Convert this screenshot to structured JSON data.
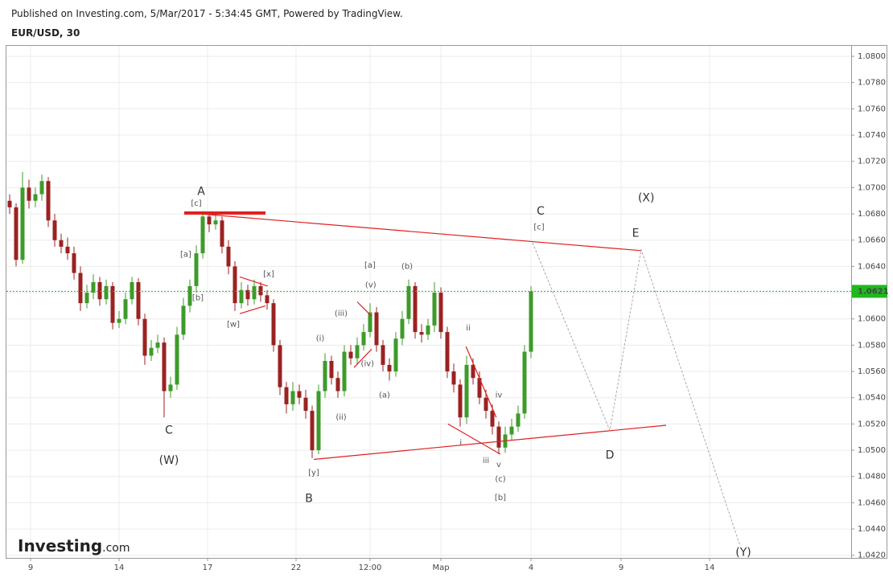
{
  "header": {
    "published": "Published on Investing.com, 5/Mar/2017 - 5:34:45 GMT, Powered by TradingView.",
    "symbol": "EUR/USD, 30"
  },
  "logo": {
    "brand": "Investing",
    "suffix": ".com"
  },
  "chart_data": {
    "type": "candlestick",
    "grid": true,
    "up_color": "#3e9b2a",
    "down_color": "#9b2222",
    "xlim": [
      -0.5,
      130.75
    ],
    "ylim": [
      1.0418,
      1.0808
    ],
    "xticks": [
      {
        "value": 3.25,
        "label": "9"
      },
      {
        "value": 17,
        "label": "14"
      },
      {
        "value": 30.75,
        "label": "17"
      },
      {
        "value": 44.5,
        "label": "22"
      },
      {
        "value": 56,
        "label": "12:00"
      },
      {
        "value": 67,
        "label": "Мар"
      },
      {
        "value": 81,
        "label": "4"
      },
      {
        "value": 95,
        "label": "9"
      },
      {
        "value": 108.75,
        "label": "14"
      }
    ],
    "yticks": [
      {
        "value": 1.042,
        "label": "1.0420"
      },
      {
        "value": 1.044,
        "label": "1.0440"
      },
      {
        "value": 1.046,
        "label": "1.0460"
      },
      {
        "value": 1.048,
        "label": "1.0480"
      },
      {
        "value": 1.05,
        "label": "1.0500"
      },
      {
        "value": 1.052,
        "label": "1.0520"
      },
      {
        "value": 1.054,
        "label": "1.0540"
      },
      {
        "value": 1.056,
        "label": "1.0560"
      },
      {
        "value": 1.058,
        "label": "1.0580"
      },
      {
        "value": 1.06,
        "label": "1.0600"
      },
      {
        "value": 1.062,
        "label": "1.0620"
      },
      {
        "value": 1.064,
        "label": "1.0640"
      },
      {
        "value": 1.066,
        "label": "1.0660"
      },
      {
        "value": 1.068,
        "label": "1.0680"
      },
      {
        "value": 1.07,
        "label": "1.0700"
      },
      {
        "value": 1.072,
        "label": "1.0720"
      },
      {
        "value": 1.074,
        "label": "1.0740"
      },
      {
        "value": 1.076,
        "label": "1.0760"
      },
      {
        "value": 1.078,
        "label": "1.0780"
      },
      {
        "value": 1.08,
        "label": "1.0800"
      }
    ],
    "x": [
      0,
      1,
      2,
      3,
      4,
      5,
      6,
      7,
      8,
      9,
      10,
      11,
      12,
      13,
      14,
      15,
      16,
      17,
      18,
      19,
      20,
      21,
      22,
      23,
      24,
      25,
      26,
      27,
      28,
      29,
      30,
      31,
      32,
      33,
      34,
      35,
      36,
      37,
      38,
      39,
      40,
      41,
      42,
      43,
      44,
      45,
      46,
      47,
      48,
      49,
      50,
      51,
      52,
      53,
      54,
      55,
      56,
      57,
      58,
      59,
      60,
      61,
      62,
      63,
      64,
      65,
      66,
      67,
      68,
      69,
      70,
      71,
      72,
      73,
      74,
      75,
      76,
      77,
      78,
      79,
      80,
      81
    ],
    "candles": [
      [
        1.069,
        1.0695,
        1.068,
        1.0685
      ],
      [
        1.0685,
        1.0688,
        1.064,
        1.0645
      ],
      [
        1.0645,
        1.0712,
        1.0642,
        1.07
      ],
      [
        1.07,
        1.0706,
        1.0684,
        1.069
      ],
      [
        1.069,
        1.07,
        1.0685,
        1.0695
      ],
      [
        1.0695,
        1.071,
        1.069,
        1.0705
      ],
      [
        1.0705,
        1.0708,
        1.067,
        1.0675
      ],
      [
        1.0675,
        1.068,
        1.0655,
        1.066
      ],
      [
        1.066,
        1.0665,
        1.065,
        1.0655
      ],
      [
        1.0655,
        1.0662,
        1.0645,
        1.065
      ],
      [
        1.065,
        1.0655,
        1.063,
        1.0635
      ],
      [
        1.0635,
        1.064,
        1.0606,
        1.0612
      ],
      [
        1.0612,
        1.0626,
        1.0608,
        1.062
      ],
      [
        1.062,
        1.0634,
        1.0615,
        1.0628
      ],
      [
        1.0628,
        1.0632,
        1.061,
        1.0615
      ],
      [
        1.0615,
        1.063,
        1.0611,
        1.0625
      ],
      [
        1.0625,
        1.0628,
        1.0592,
        1.0597
      ],
      [
        1.0597,
        1.0606,
        1.0593,
        1.06
      ],
      [
        1.06,
        1.062,
        1.0596,
        1.0615
      ],
      [
        1.0615,
        1.0632,
        1.0611,
        1.0628
      ],
      [
        1.0628,
        1.0631,
        1.0595,
        1.06
      ],
      [
        1.06,
        1.0604,
        1.0565,
        1.0572
      ],
      [
        1.0572,
        1.0584,
        1.0568,
        1.0578
      ],
      [
        1.0578,
        1.0588,
        1.0574,
        1.0582
      ],
      [
        1.0582,
        1.0586,
        1.0525,
        1.0545
      ],
      [
        1.0545,
        1.0556,
        1.054,
        1.055
      ],
      [
        1.055,
        1.0594,
        1.0546,
        1.0588
      ],
      [
        1.0588,
        1.0616,
        1.0584,
        1.061
      ],
      [
        1.061,
        1.063,
        1.0605,
        1.0625
      ],
      [
        1.0625,
        1.0656,
        1.062,
        1.065
      ],
      [
        1.065,
        1.0682,
        1.0646,
        1.0678
      ],
      [
        1.0678,
        1.0681,
        1.0666,
        1.0672
      ],
      [
        1.0672,
        1.068,
        1.0668,
        1.0675
      ],
      [
        1.0675,
        1.0678,
        1.065,
        1.0655
      ],
      [
        1.0655,
        1.066,
        1.0634,
        1.064
      ],
      [
        1.064,
        1.0644,
        1.0606,
        1.0612
      ],
      [
        1.0612,
        1.0628,
        1.0608,
        1.0622
      ],
      [
        1.0622,
        1.0626,
        1.061,
        1.0615
      ],
      [
        1.0615,
        1.063,
        1.0611,
        1.0625
      ],
      [
        1.0625,
        1.0628,
        1.0613,
        1.0618
      ],
      [
        1.0618,
        1.0622,
        1.0607,
        1.0612
      ],
      [
        1.0612,
        1.0615,
        1.0575,
        1.058
      ],
      [
        1.058,
        1.0584,
        1.0542,
        1.0548
      ],
      [
        1.0548,
        1.0552,
        1.0528,
        1.0535
      ],
      [
        1.0535,
        1.0552,
        1.053,
        1.0545
      ],
      [
        1.0545,
        1.055,
        1.0535,
        1.054
      ],
      [
        1.054,
        1.0546,
        1.0524,
        1.053
      ],
      [
        1.053,
        1.0534,
        1.0494,
        1.05
      ],
      [
        1.05,
        1.055,
        1.0497,
        1.0545
      ],
      [
        1.0545,
        1.0574,
        1.054,
        1.0568
      ],
      [
        1.0568,
        1.0572,
        1.055,
        1.0555
      ],
      [
        1.0555,
        1.056,
        1.054,
        1.0545
      ],
      [
        1.0545,
        1.058,
        1.0541,
        1.0575
      ],
      [
        1.0575,
        1.058,
        1.0565,
        1.057
      ],
      [
        1.057,
        1.0586,
        1.0566,
        1.058
      ],
      [
        1.058,
        1.0596,
        1.0576,
        1.059
      ],
      [
        1.059,
        1.0612,
        1.0586,
        1.0605
      ],
      [
        1.0605,
        1.0609,
        1.0575,
        1.058
      ],
      [
        1.058,
        1.0584,
        1.056,
        1.0565
      ],
      [
        1.0565,
        1.057,
        1.0553,
        1.056
      ],
      [
        1.056,
        1.059,
        1.0556,
        1.0585
      ],
      [
        1.0585,
        1.0606,
        1.058,
        1.06
      ],
      [
        1.06,
        1.063,
        1.0596,
        1.0625
      ],
      [
        1.0625,
        1.0628,
        1.0585,
        1.059
      ],
      [
        1.059,
        1.0596,
        1.0582,
        1.0588
      ],
      [
        1.0588,
        1.06,
        1.0584,
        1.0595
      ],
      [
        1.0595,
        1.0628,
        1.059,
        1.062
      ],
      [
        1.062,
        1.0624,
        1.0585,
        1.059
      ],
      [
        1.059,
        1.0594,
        1.0555,
        1.056
      ],
      [
        1.056,
        1.0566,
        1.0544,
        1.055
      ],
      [
        1.055,
        1.0554,
        1.0518,
        1.0525
      ],
      [
        1.0525,
        1.0572,
        1.052,
        1.0565
      ],
      [
        1.0565,
        1.057,
        1.055,
        1.0555
      ],
      [
        1.0555,
        1.056,
        1.0535,
        1.054
      ],
      [
        1.054,
        1.0546,
        1.0524,
        1.053
      ],
      [
        1.053,
        1.0535,
        1.0512,
        1.0518
      ],
      [
        1.0518,
        1.0522,
        1.0497,
        1.0502
      ],
      [
        1.0502,
        1.0518,
        1.0498,
        1.0512
      ],
      [
        1.0512,
        1.0524,
        1.0508,
        1.0518
      ],
      [
        1.0518,
        1.0534,
        1.0514,
        1.0528
      ],
      [
        1.0528,
        1.058,
        1.0524,
        1.0575
      ],
      [
        1.0575,
        1.0625,
        1.057,
        1.0621
      ]
    ],
    "last_price": {
      "value": 1.0621,
      "label": "1.0621",
      "color": "#1fb81f"
    },
    "trendline_color": "#e02020",
    "trendlines": [
      {
        "x": [
          27.125,
          98.125
        ],
        "y": [
          1.0681,
          1.0652
        ]
      },
      {
        "x": [
          47.25,
          102
        ],
        "y": [
          1.0493,
          1.0519
        ]
      },
      {
        "x": [
          35.75,
          40.1
        ],
        "y": [
          1.0632,
          1.0625
        ]
      },
      {
        "x": [
          35.75,
          39.75
        ],
        "y": [
          1.0604,
          1.061
        ]
      },
      {
        "x": [
          54,
          56.25
        ],
        "y": [
          1.0613,
          1.0602
        ]
      },
      {
        "x": [
          53.5,
          56.25
        ],
        "y": [
          1.0563,
          1.0577
        ]
      },
      {
        "x": [
          70.9,
          75.6
        ],
        "y": [
          1.0579,
          1.0525
        ]
      },
      {
        "x": [
          68.1,
          76.25
        ],
        "y": [
          1.052,
          1.0497
        ]
      }
    ],
    "projection": {
      "color": "#aaaaaa",
      "x": [
        81.25,
        93.25,
        98.125,
        113.5
      ],
      "y": [
        1.0658,
        1.0515,
        1.0653,
        1.0427
      ]
    },
    "annotations": [
      {
        "text": "A",
        "x": 29.75,
        "y": 1.0697
      },
      {
        "text": "[c]",
        "x": 29.0,
        "y": 1.0688
      },
      {
        "text": "C",
        "x": 24.75,
        "y": 1.0515
      },
      {
        "text": "(W)",
        "x": 24.75,
        "y": 1.0492
      },
      {
        "text": "[a]",
        "x": 27.375,
        "y": 1.0649
      },
      {
        "text": "[b]",
        "x": 29.25,
        "y": 1.0616
      },
      {
        "text": "[w]",
        "x": 34.75,
        "y": 1.0596
      },
      {
        "text": "[x]",
        "x": 40.25,
        "y": 1.0634
      },
      {
        "text": "[y]",
        "x": 47.25,
        "y": 1.0483
      },
      {
        "text": "B",
        "x": 46.5,
        "y": 1.0463
      },
      {
        "text": "(i)",
        "x": 48.25,
        "y": 1.0585
      },
      {
        "text": "(ii)",
        "x": 51.5,
        "y": 1.0525
      },
      {
        "text": "(iii)",
        "x": 51.5,
        "y": 1.0604
      },
      {
        "text": "(iv)",
        "x": 55.6,
        "y": 1.0566
      },
      {
        "text": "(v)",
        "x": 56.1,
        "y": 1.0626
      },
      {
        "text": "[a]",
        "x": 56.0,
        "y": 1.0641
      },
      {
        "text": "(a)",
        "x": 58.25,
        "y": 1.0542
      },
      {
        "text": "(b)",
        "x": 61.75,
        "y": 1.064
      },
      {
        "text": "ii",
        "x": 71.25,
        "y": 1.0593
      },
      {
        "text": "iv",
        "x": 76.0,
        "y": 1.0542
      },
      {
        "text": "i",
        "x": 70.1,
        "y": 1.0506
      },
      {
        "text": "iii",
        "x": 74.0,
        "y": 1.0492
      },
      {
        "text": "v",
        "x": 76.0,
        "y": 1.0489
      },
      {
        "text": "(c)",
        "x": 76.25,
        "y": 1.0478
      },
      {
        "text": "[b]",
        "x": 76.25,
        "y": 1.0464
      },
      {
        "text": "C",
        "x": 82.5,
        "y": 1.0682
      },
      {
        "text": "[c]",
        "x": 82.25,
        "y": 1.067
      },
      {
        "text": "(X)",
        "x": 98.9,
        "y": 1.0692
      },
      {
        "text": "E",
        "x": 97.25,
        "y": 1.0665
      },
      {
        "text": "D",
        "x": 93.25,
        "y": 1.0496
      },
      {
        "text": "(Y)",
        "x": 114.0,
        "y": 1.0422
      }
    ]
  }
}
